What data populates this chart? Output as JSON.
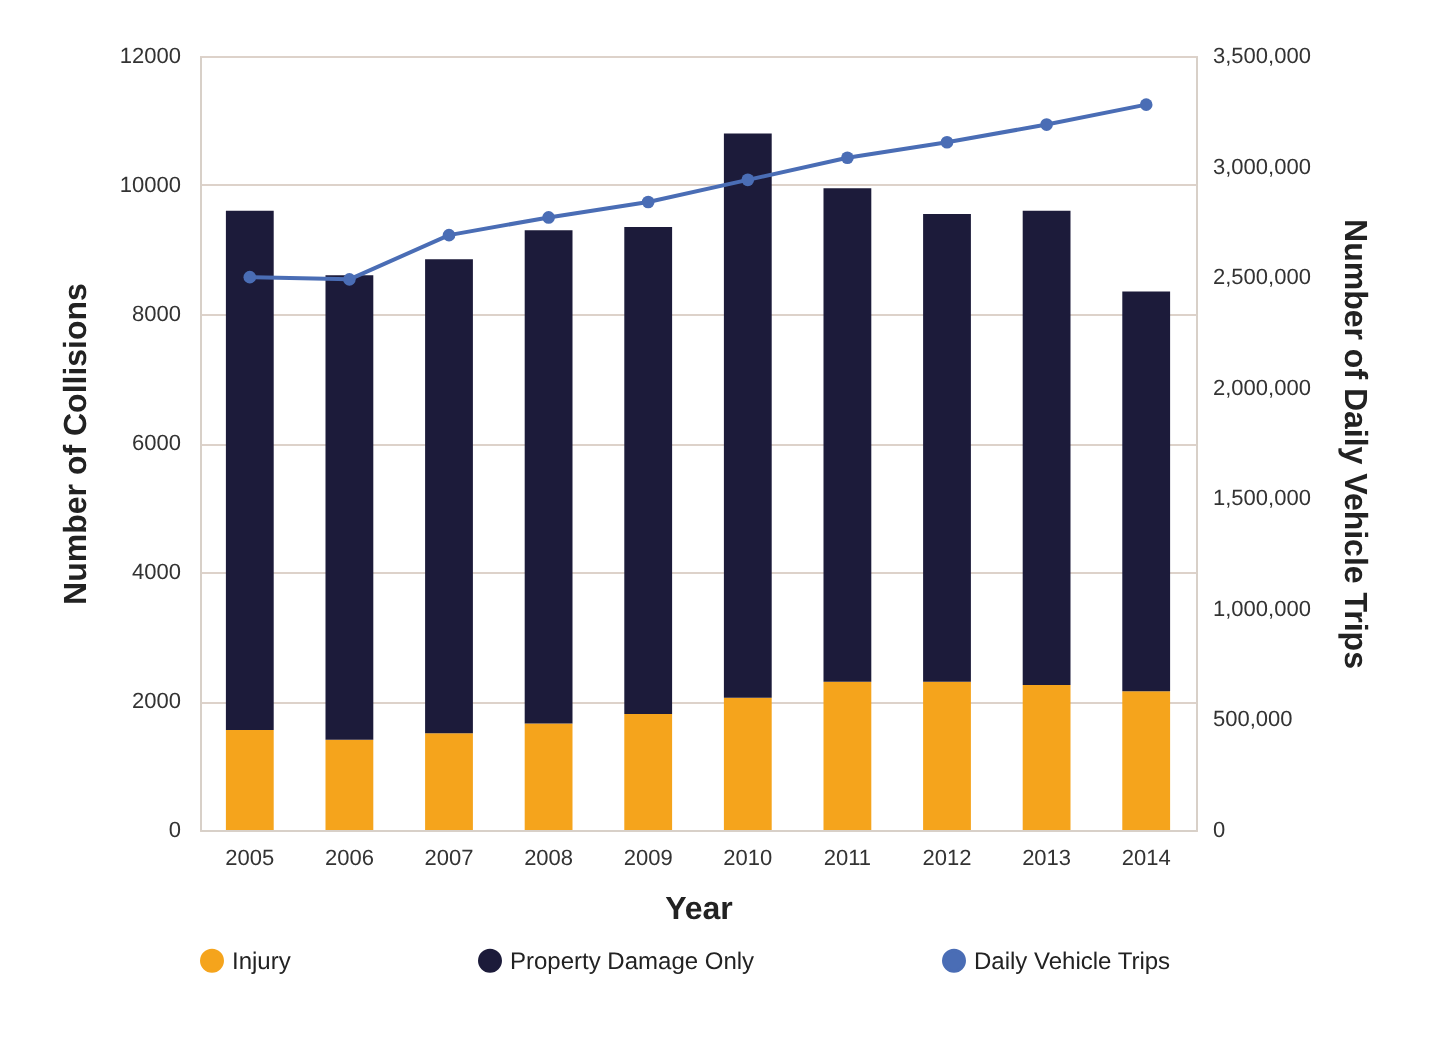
{
  "chart_data": {
    "type": "bar",
    "stacked": true,
    "xlabel": "Year",
    "ylabel": "Number of Collisions",
    "y2label": "Number of Daily Vehicle Trips",
    "categories": [
      "2005",
      "2006",
      "2007",
      "2008",
      "2009",
      "2010",
      "2011",
      "2012",
      "2013",
      "2014"
    ],
    "series": [
      {
        "name": "Injury",
        "color": "#f5a41c",
        "values": [
          1550,
          1400,
          1500,
          1650,
          1800,
          2050,
          2300,
          2300,
          2250,
          2150
        ]
      },
      {
        "name": "Property Damage Only",
        "color": "#1c1b3a",
        "values": [
          8050,
          7200,
          7350,
          7650,
          7550,
          8750,
          7650,
          7250,
          7350,
          6200
        ]
      },
      {
        "name": "Daily Vehicle Trips",
        "type": "line",
        "axis": "y2",
        "color": "#4a6db5",
        "values": [
          2500000,
          2490000,
          2690000,
          2770000,
          2840000,
          2940000,
          3040000,
          3110000,
          3190000,
          3280000
        ]
      }
    ],
    "ylim": [
      0,
      12000
    ],
    "yticks": [
      0,
      2000,
      4000,
      6000,
      8000,
      10000,
      12000
    ],
    "y2lim": [
      0,
      3500000
    ],
    "y2ticks": [
      0,
      {
        "value": 500000,
        "label": "500,000"
      },
      {
        "value": 1000000,
        "label": "1,000,000"
      },
      {
        "value": 1500000,
        "label": "1,500,000"
      },
      {
        "value": 2000000,
        "label": "2,000,000"
      },
      {
        "value": 2500000,
        "label": "2,500,000"
      },
      {
        "value": 3000000,
        "label": "3,000,000"
      },
      {
        "value": 3500000,
        "label": "3,500,000"
      }
    ],
    "grid": "y",
    "legend": "bottom",
    "marker": "circle",
    "line_style": "solid"
  }
}
